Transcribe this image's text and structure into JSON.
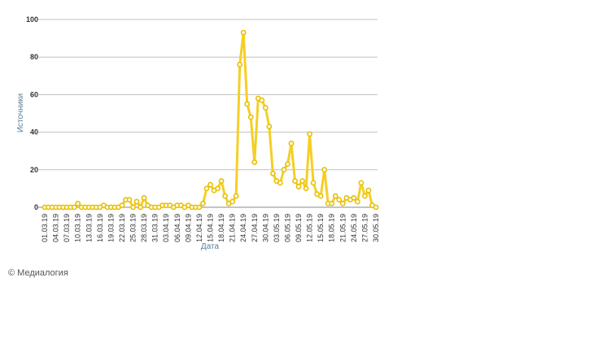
{
  "chart_data": {
    "type": "line",
    "xlabel": "Дата",
    "ylabel": "Источники",
    "ylim": [
      0,
      100
    ],
    "yticks": [
      0,
      20,
      40,
      60,
      80,
      100
    ],
    "grid": true,
    "line_color": "#f5cf25",
    "marker_stroke": "#e8c000",
    "x_tick_labels": [
      "01.03.19",
      "04.03.19",
      "07.03.19",
      "10.03.19",
      "13.03.19",
      "16.03.19",
      "19.03.19",
      "22.03.19",
      "25.03.19",
      "28.03.19",
      "31.03.19",
      "03.04.19",
      "06.04.19",
      "09.04.19",
      "12.04.19",
      "15.04.19",
      "18.04.19",
      "21.04.19",
      "24.04.19",
      "27.04.19",
      "30.04.19",
      "03.05.19",
      "06.05.19",
      "09.05.19",
      "12.05.19",
      "15.05.19",
      "18.05.19",
      "21.05.19",
      "24.05.19",
      "27.05.19",
      "30.05.19"
    ],
    "x_tick_every": 3,
    "series": [
      {
        "values": [
          0,
          0,
          0,
          0,
          0,
          0,
          0,
          0,
          0,
          2,
          0,
          0,
          0,
          0,
          0,
          0,
          1,
          0,
          0,
          0,
          0,
          1,
          4,
          4,
          0,
          3,
          0,
          5,
          1,
          0,
          0,
          0,
          1,
          1,
          1,
          0,
          1,
          1,
          0,
          1,
          0,
          0,
          0,
          2,
          10,
          12,
          9,
          10,
          14,
          6,
          2,
          3,
          6,
          76,
          93,
          55,
          48,
          24,
          58,
          57,
          53,
          43,
          18,
          14,
          13,
          20,
          23,
          34,
          14,
          11,
          14,
          10,
          39,
          13,
          7,
          6,
          20,
          2,
          2,
          6,
          4,
          2,
          5,
          4,
          5,
          3,
          13,
          6,
          9,
          1,
          0
        ]
      }
    ]
  },
  "footer": {
    "copyright": "© Медиалогия"
  }
}
